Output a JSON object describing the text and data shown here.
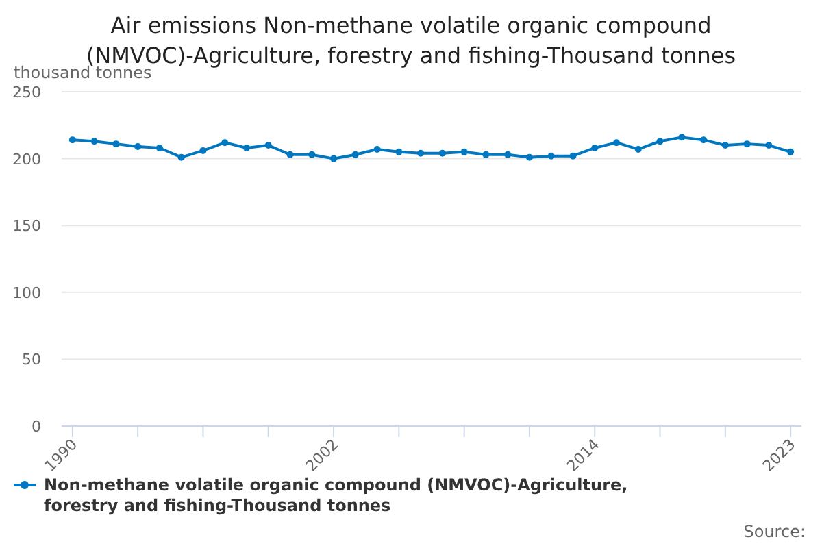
{
  "chart_data": {
    "type": "line",
    "title": "Air emissions Non-methane volatile organic compound (NMVOC)-Agriculture, forestry and fishing-Thousand tonnes",
    "ylabel": "thousand tonnes",
    "x": [
      1990,
      1991,
      1992,
      1993,
      1994,
      1995,
      1996,
      1997,
      1998,
      1999,
      2000,
      2001,
      2002,
      2003,
      2004,
      2005,
      2006,
      2007,
      2008,
      2009,
      2010,
      2011,
      2012,
      2013,
      2014,
      2015,
      2016,
      2017,
      2018,
      2019,
      2020,
      2021,
      2022,
      2023
    ],
    "series": [
      {
        "name": "Non-methane volatile organic compound (NMVOC)-Agriculture, forestry and fishing-Thousand tonnes",
        "color": "#0077c0",
        "values": [
          214,
          213,
          211,
          209,
          208,
          201,
          206,
          212,
          208,
          210,
          203,
          203,
          200,
          203,
          207,
          205,
          204,
          204,
          205,
          203,
          203,
          201,
          202,
          202,
          208,
          212,
          207,
          213,
          216,
          214,
          210,
          211,
          210,
          205
        ]
      }
    ],
    "xlim": [
      1989.5,
      2023.5
    ],
    "xticks": [
      1990,
      {
        "value": 1993,
        "label": null
      },
      {
        "value": 1996,
        "label": null
      },
      {
        "value": 1999,
        "label": null
      },
      2002,
      {
        "value": 2005,
        "label": null
      },
      {
        "value": 2008,
        "label": null
      },
      {
        "value": 2011,
        "label": null
      },
      2014,
      {
        "value": 2017,
        "label": null
      },
      {
        "value": 2020,
        "label": null
      },
      2023
    ],
    "ylim": [
      0,
      250
    ],
    "yticks": [
      0,
      50,
      100,
      150,
      200,
      250
    ],
    "grid": "y",
    "legend": "bottom",
    "marker": "circle",
    "line_style": "solid",
    "annotations": [
      "Source:"
    ]
  }
}
